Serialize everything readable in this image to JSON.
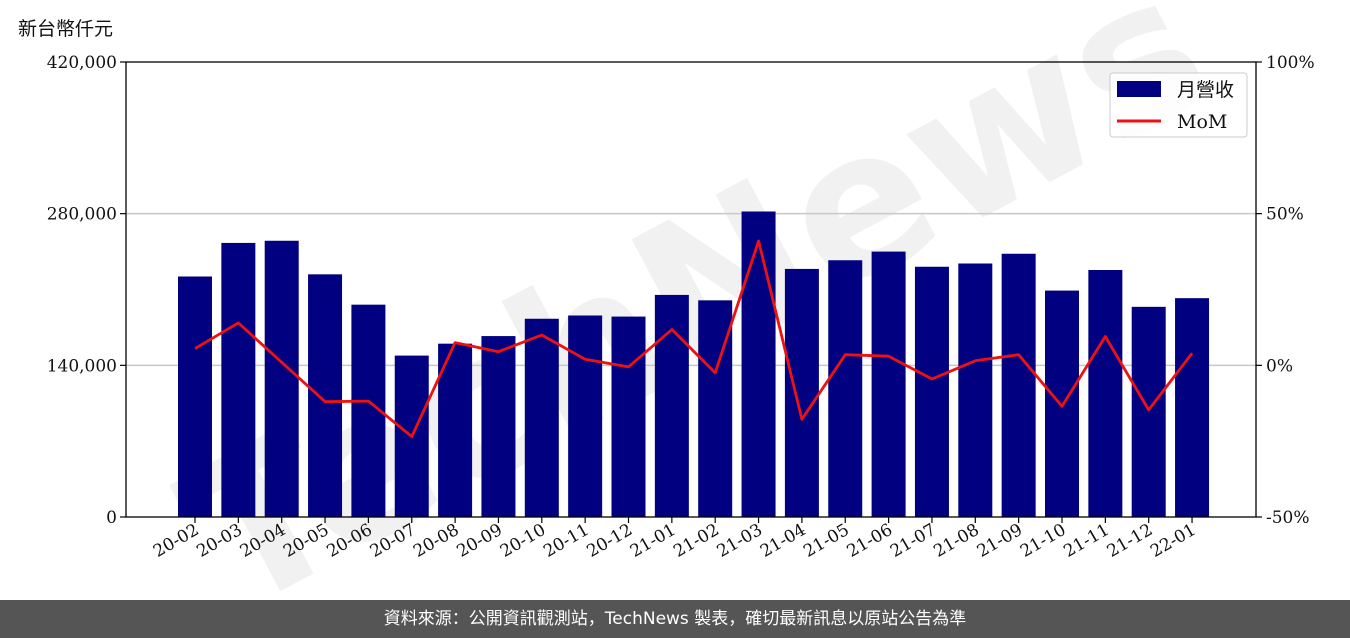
{
  "unit_label": "新台幣仟元",
  "footer_text": "資料來源：公開資訊觀測站，TechNews 製表，確切最新訊息以原站公告為準",
  "watermark": "TechNews",
  "colors": {
    "bar": "#000080",
    "line": "#ee1111",
    "grid": "#c8c8c8",
    "footer_bg": "#555555"
  },
  "chart_data": {
    "type": "bar+line",
    "categories": [
      "20-02",
      "20-03",
      "20-04",
      "20-05",
      "20-06",
      "20-07",
      "20-08",
      "20-09",
      "20-10",
      "20-11",
      "20-12",
      "21-01",
      "21-02",
      "21-03",
      "21-04",
      "21-05",
      "21-06",
      "21-07",
      "21-08",
      "21-09",
      "21-10",
      "21-11",
      "21-12",
      "22-01"
    ],
    "series": [
      {
        "name": "月營收",
        "type": "bar",
        "axis": "left",
        "values": [
          222000,
          253000,
          255000,
          224000,
          196000,
          149000,
          160000,
          167000,
          183000,
          186000,
          185000,
          205000,
          200000,
          282000,
          229000,
          237000,
          245000,
          231000,
          234000,
          243000,
          209000,
          228000,
          194000,
          202000
        ]
      },
      {
        "name": "MoM",
        "type": "line",
        "axis": "right",
        "values": [
          5.5,
          14,
          1,
          -12,
          -11.8,
          -23.5,
          7.5,
          4.5,
          10,
          2,
          -0.5,
          11.8,
          -2.5,
          41,
          -17.8,
          3.5,
          3,
          -4.5,
          1.5,
          3.5,
          -13.5,
          9.5,
          -14.7,
          4
        ]
      }
    ],
    "ylim_left": [
      0,
      420000
    ],
    "yticks_left": [
      "0",
      "140,000",
      "280,000",
      "420,000"
    ],
    "ylim_right": [
      -50,
      100
    ],
    "yticks_right": [
      "-50%",
      "0%",
      "50%",
      "100%"
    ],
    "grid": "horizontal",
    "legend_position": "top-right"
  }
}
